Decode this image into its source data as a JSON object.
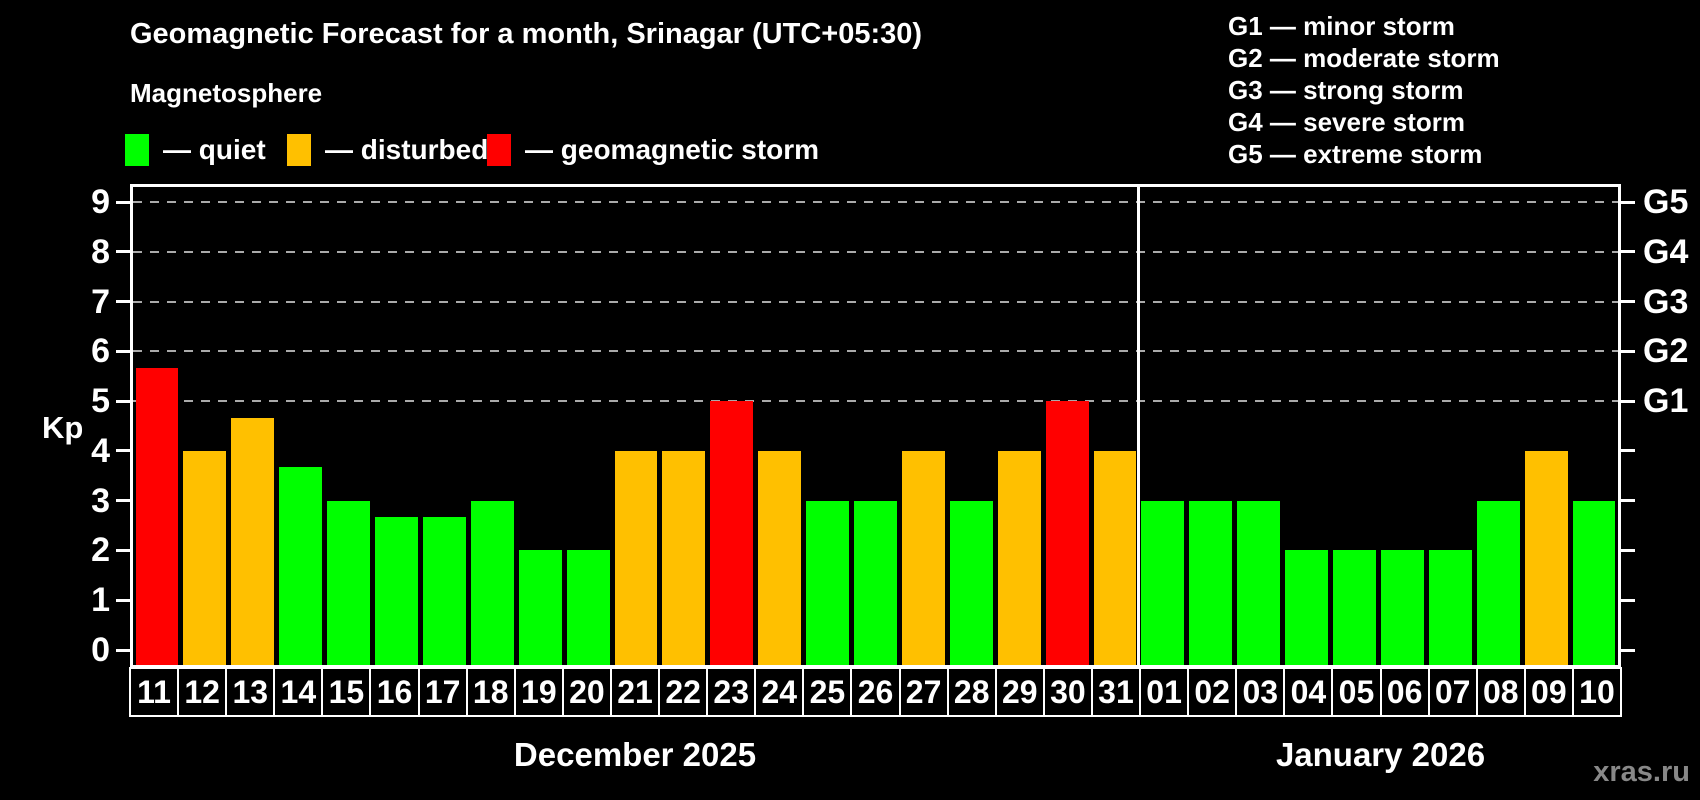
{
  "title": "Geomagnetic Forecast for a month, Srinagar (UTC+05:30)",
  "subtitle": "Magnetosphere",
  "kp_axis_label": "Kp",
  "watermark": "xras.ru",
  "colors": {
    "quiet": "#00ff00",
    "disturbed": "#ffc000",
    "storm": "#ff0000",
    "background": "#000000",
    "text": "#ffffff",
    "gridline": "#aaaaaa",
    "watermark": "#888888"
  },
  "legend": {
    "items": [
      {
        "status": "quiet",
        "label": "— quiet"
      },
      {
        "status": "disturbed",
        "label": "— disturbed"
      },
      {
        "status": "storm",
        "label": "— geomagnetic storm"
      }
    ]
  },
  "g_legend": {
    "lines": [
      "G1 — minor storm",
      "G2 — moderate storm",
      "G3 — strong storm",
      "G4 — severe storm",
      "G5 — extreme storm"
    ]
  },
  "chart_data": {
    "type": "bar",
    "title": "Geomagnetic Forecast for a month, Srinagar (UTC+05:30)",
    "ylabel": "Kp",
    "ylim": [
      0,
      9.4
    ],
    "grid": "dashed horizontal lines at Kp 5-9 only",
    "legend_position": "top-left",
    "yaxis_ticks": [
      0,
      1,
      2,
      3,
      4,
      5,
      6,
      7,
      8,
      9
    ],
    "right_axis": [
      {
        "kp": 5,
        "label": "G1"
      },
      {
        "kp": 6,
        "label": "G2"
      },
      {
        "kp": 7,
        "label": "G3"
      },
      {
        "kp": 8,
        "label": "G4"
      },
      {
        "kp": 9,
        "label": "G5"
      }
    ],
    "months": [
      {
        "label": "December 2025",
        "days": [
          {
            "day": "11",
            "kp": 5.67,
            "status": "storm"
          },
          {
            "day": "12",
            "kp": 4,
            "status": "disturbed"
          },
          {
            "day": "13",
            "kp": 4.67,
            "status": "disturbed"
          },
          {
            "day": "14",
            "kp": 3.67,
            "status": "quiet"
          },
          {
            "day": "15",
            "kp": 3,
            "status": "quiet"
          },
          {
            "day": "16",
            "kp": 2.67,
            "status": "quiet"
          },
          {
            "day": "17",
            "kp": 2.67,
            "status": "quiet"
          },
          {
            "day": "18",
            "kp": 3,
            "status": "quiet"
          },
          {
            "day": "19",
            "kp": 2,
            "status": "quiet"
          },
          {
            "day": "20",
            "kp": 2,
            "status": "quiet"
          },
          {
            "day": "21",
            "kp": 4,
            "status": "disturbed"
          },
          {
            "day": "22",
            "kp": 4,
            "status": "disturbed"
          },
          {
            "day": "23",
            "kp": 5,
            "status": "storm"
          },
          {
            "day": "24",
            "kp": 4,
            "status": "disturbed"
          },
          {
            "day": "25",
            "kp": 3,
            "status": "quiet"
          },
          {
            "day": "26",
            "kp": 3,
            "status": "quiet"
          },
          {
            "day": "27",
            "kp": 4,
            "status": "disturbed"
          },
          {
            "day": "28",
            "kp": 3,
            "status": "quiet"
          },
          {
            "day": "29",
            "kp": 4,
            "status": "disturbed"
          },
          {
            "day": "30",
            "kp": 5,
            "status": "storm"
          },
          {
            "day": "31",
            "kp": 4,
            "status": "disturbed"
          }
        ]
      },
      {
        "label": "January 2026",
        "days": [
          {
            "day": "01",
            "kp": 3,
            "status": "quiet"
          },
          {
            "day": "02",
            "kp": 3,
            "status": "quiet"
          },
          {
            "day": "03",
            "kp": 3,
            "status": "quiet"
          },
          {
            "day": "04",
            "kp": 2,
            "status": "quiet"
          },
          {
            "day": "05",
            "kp": 2,
            "status": "quiet"
          },
          {
            "day": "06",
            "kp": 2,
            "status": "quiet"
          },
          {
            "day": "07",
            "kp": 2,
            "status": "quiet"
          },
          {
            "day": "08",
            "kp": 3,
            "status": "quiet"
          },
          {
            "day": "09",
            "kp": 4,
            "status": "disturbed"
          },
          {
            "day": "10",
            "kp": 3,
            "status": "quiet"
          }
        ]
      }
    ]
  }
}
